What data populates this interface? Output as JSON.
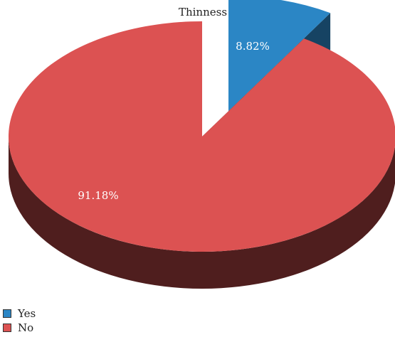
{
  "chart_data": {
    "type": "pie",
    "title": "Thinness",
    "style": "3d",
    "exploded_slice": "Yes",
    "legend_position": "bottom-left",
    "slices": [
      {
        "label": "Yes",
        "value": 8.82,
        "display": "8.82%",
        "color": "#2b86c5"
      },
      {
        "label": "No",
        "value": 91.18,
        "display": "91.18%",
        "color": "#dc5252"
      }
    ]
  }
}
